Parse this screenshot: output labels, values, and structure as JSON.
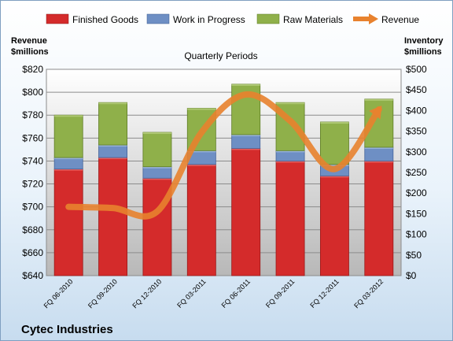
{
  "chart_data": {
    "type": "bar",
    "title": "Quarterly Periods",
    "company": "Cytec Industries",
    "y_left_label_line1": "Revenue",
    "y_left_label_line2": "$millions",
    "y_right_label_line1": "Inventory",
    "y_right_label_line2": "$millions",
    "categories": [
      "FQ 06-2010",
      "FQ 09-2010",
      "FQ 12-2010",
      "FQ 03-2011",
      "FQ 06-2011",
      "FQ 09-2011",
      "FQ 12-2011",
      "FQ 03-2012"
    ],
    "y_left_range": [
      640,
      820
    ],
    "y_left_ticks": [
      "$640",
      "$660",
      "$680",
      "$700",
      "$720",
      "$740",
      "$760",
      "$780",
      "$800",
      "$820"
    ],
    "y_right_range": [
      0,
      500
    ],
    "y_right_ticks": [
      "$0",
      "$50",
      "$100",
      "$150",
      "$200",
      "$250",
      "$300",
      "$350",
      "$400",
      "$450",
      "$500"
    ],
    "grid": true,
    "legend_position": "top",
    "series": [
      {
        "name": "Finished Goods",
        "color": "#d42b2b",
        "values": [
          733,
          743,
          725,
          737,
          751,
          740,
          727,
          740
        ]
      },
      {
        "name": "Work in Progress",
        "color": "#6e8fc4",
        "values": [
          10,
          11,
          10,
          12,
          12,
          9,
          10,
          12
        ]
      },
      {
        "name": "Raw Materials",
        "color": "#8fb04a",
        "values": [
          37,
          37,
          30,
          37,
          44,
          42,
          37,
          42
        ]
      }
    ],
    "line_series": {
      "name": "Revenue",
      "color": "#e8822e",
      "axis": "left",
      "values": [
        700,
        699,
        696,
        765,
        798,
        775,
        733,
        785
      ]
    }
  }
}
